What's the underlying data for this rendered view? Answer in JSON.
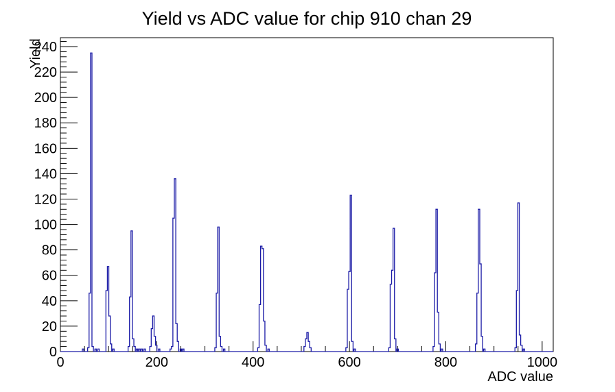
{
  "title": "Yield vs ADC value for chip 910 chan 29",
  "chart_data": {
    "type": "bar",
    "title": "Yield vs ADC value for chip 910 chan 29",
    "xlabel": "ADC value",
    "ylabel": "Yield",
    "xlim": [
      0,
      1023
    ],
    "ylim": [
      0,
      247
    ],
    "grid": false,
    "legend": "none",
    "x_major_ticks": [
      0,
      200,
      400,
      600,
      800,
      1000
    ],
    "x_minor_step": 50,
    "y_major_ticks": [
      0,
      20,
      40,
      60,
      80,
      100,
      120,
      140,
      160,
      180,
      200,
      220,
      240
    ],
    "y_minor_step": 4,
    "bin_width": 3,
    "line_color": "#1a1aa6",
    "axis_color": "#000000",
    "background_color": "#ffffff",
    "bins": [
      [
        47,
        2
      ],
      [
        58,
        3
      ],
      [
        61,
        46
      ],
      [
        64,
        235
      ],
      [
        67,
        4
      ],
      [
        73,
        2
      ],
      [
        79,
        2
      ],
      [
        96,
        48
      ],
      [
        99,
        67
      ],
      [
        102,
        28
      ],
      [
        105,
        6
      ],
      [
        110,
        2
      ],
      [
        142,
        4
      ],
      [
        145,
        43
      ],
      [
        148,
        95
      ],
      [
        151,
        10
      ],
      [
        154,
        4
      ],
      [
        159,
        2
      ],
      [
        164,
        2
      ],
      [
        169,
        2
      ],
      [
        175,
        2
      ],
      [
        187,
        4
      ],
      [
        190,
        18
      ],
      [
        193,
        28
      ],
      [
        196,
        12
      ],
      [
        199,
        5
      ],
      [
        205,
        2
      ],
      [
        229,
        2
      ],
      [
        232,
        4
      ],
      [
        235,
        105
      ],
      [
        238,
        136
      ],
      [
        241,
        22
      ],
      [
        244,
        8
      ],
      [
        250,
        2
      ],
      [
        255,
        2
      ],
      [
        322,
        3
      ],
      [
        325,
        46
      ],
      [
        328,
        98
      ],
      [
        331,
        12
      ],
      [
        334,
        4
      ],
      [
        340,
        2
      ],
      [
        411,
        3
      ],
      [
        414,
        37
      ],
      [
        417,
        83
      ],
      [
        420,
        81
      ],
      [
        423,
        24
      ],
      [
        426,
        5
      ],
      [
        432,
        2
      ],
      [
        507,
        4
      ],
      [
        510,
        10
      ],
      [
        513,
        15
      ],
      [
        516,
        8
      ],
      [
        519,
        3
      ],
      [
        594,
        3
      ],
      [
        597,
        49
      ],
      [
        600,
        63
      ],
      [
        603,
        123
      ],
      [
        606,
        8
      ],
      [
        611,
        2
      ],
      [
        683,
        3
      ],
      [
        686,
        53
      ],
      [
        689,
        64
      ],
      [
        692,
        97
      ],
      [
        695,
        10
      ],
      [
        700,
        2
      ],
      [
        775,
        4
      ],
      [
        778,
        62
      ],
      [
        781,
        112
      ],
      [
        784,
        31
      ],
      [
        787,
        6
      ],
      [
        792,
        2
      ],
      [
        863,
        6
      ],
      [
        866,
        46
      ],
      [
        869,
        112
      ],
      [
        872,
        69
      ],
      [
        875,
        12
      ],
      [
        880,
        2
      ],
      [
        945,
        3
      ],
      [
        948,
        48
      ],
      [
        951,
        117
      ],
      [
        954,
        13
      ],
      [
        957,
        5
      ],
      [
        962,
        2
      ]
    ]
  }
}
